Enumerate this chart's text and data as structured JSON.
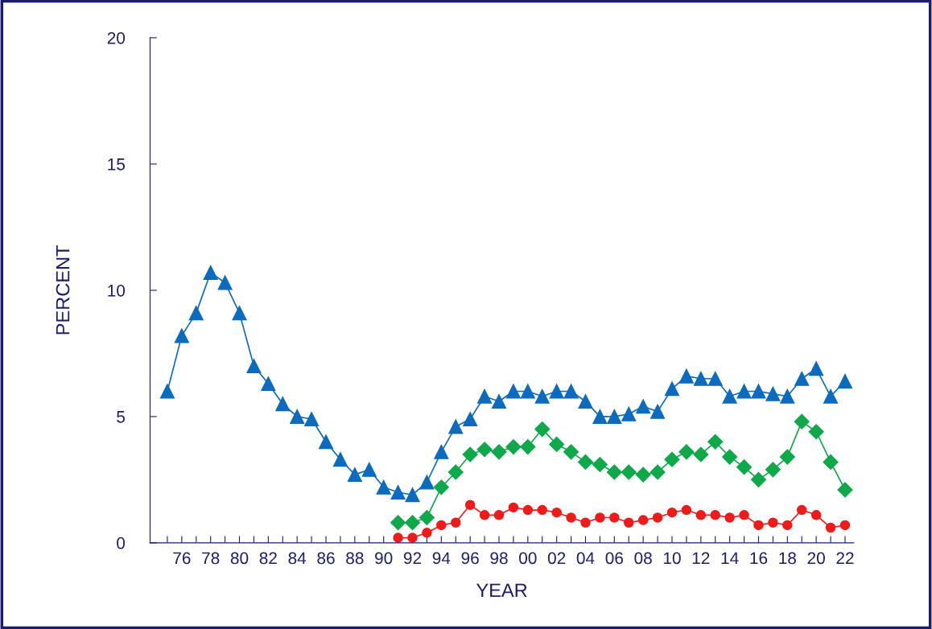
{
  "chart_data": {
    "type": "line",
    "xlabel": "YEAR",
    "ylabel": "PERCENT",
    "categories": [
      null,
      "76",
      null,
      "78",
      null,
      "80",
      null,
      "82",
      null,
      "84",
      null,
      "86",
      null,
      "88",
      null,
      "90",
      null,
      "92",
      null,
      "94",
      null,
      "96",
      null,
      "98",
      null,
      "00",
      null,
      "02",
      null,
      "04",
      null,
      "06",
      null,
      "08",
      null,
      "10",
      null,
      "12",
      null,
      "14",
      null,
      "16",
      null,
      "18",
      null,
      "20",
      null,
      "22"
    ],
    "series": [
      {
        "color": "#0a6bbf",
        "marker": "triangle",
        "values": [
          6.0,
          8.2,
          9.1,
          10.7,
          10.3,
          9.1,
          7.0,
          6.3,
          5.5,
          5.0,
          4.9,
          4.0,
          3.3,
          2.7,
          2.9,
          2.2,
          2.0,
          1.9,
          2.4,
          3.6,
          4.6,
          4.9,
          5.8,
          5.6,
          6.0,
          6.0,
          5.8,
          6.0,
          6.0,
          5.6,
          5.0,
          5.0,
          5.1,
          5.4,
          5.2,
          6.1,
          6.6,
          6.5,
          6.5,
          5.8,
          6.0,
          6.0,
          5.9,
          5.8,
          6.5,
          6.9,
          5.8,
          6.4
        ]
      },
      {
        "color": "#0fa84a",
        "marker": "diamond",
        "values": [
          null,
          null,
          null,
          null,
          null,
          null,
          null,
          null,
          null,
          null,
          null,
          null,
          null,
          null,
          null,
          null,
          0.8,
          0.8,
          1.0,
          2.2,
          2.8,
          3.5,
          3.7,
          3.6,
          3.8,
          3.8,
          4.5,
          3.9,
          3.6,
          3.2,
          3.1,
          2.8,
          2.8,
          2.7,
          2.8,
          3.3,
          3.6,
          3.5,
          4.0,
          3.4,
          3.0,
          2.5,
          2.9,
          3.4,
          4.8,
          4.4,
          3.2,
          2.1
        ]
      },
      {
        "color": "#ee1b1b",
        "marker": "circle",
        "values": [
          null,
          null,
          null,
          null,
          null,
          null,
          null,
          null,
          null,
          null,
          null,
          null,
          null,
          null,
          null,
          null,
          0.2,
          0.2,
          0.4,
          0.7,
          0.8,
          1.5,
          1.1,
          1.1,
          1.4,
          1.3,
          1.3,
          1.2,
          1.0,
          0.8,
          1.0,
          1.0,
          0.8,
          0.9,
          1.0,
          1.2,
          1.3,
          1.1,
          1.1,
          1.0,
          1.1,
          0.7,
          0.8,
          0.7,
          1.3,
          1.1,
          0.6,
          0.7
        ]
      }
    ],
    "ylim": [
      0,
      20
    ],
    "yticks": [
      0,
      5,
      10,
      15,
      20
    ],
    "grid": false,
    "legend": false
  }
}
